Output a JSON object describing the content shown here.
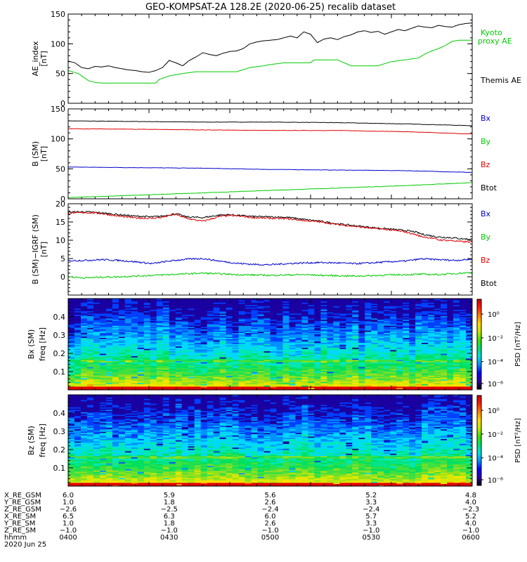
{
  "title": "GEO-KOMPSAT-2A 128.2E (2020-06-25) recalib dataset",
  "colors": {
    "black": "#000000",
    "red": "#e00000",
    "green": "#00cc00",
    "blue": "#0000cc"
  },
  "chart_data": [
    {
      "id": "ae",
      "type": "line",
      "ylabel": "AE_index",
      "yunit": "[nT]",
      "ylim": [
        0,
        150
      ],
      "yticks": [
        "0",
        "50",
        "100",
        "150"
      ],
      "x_range": [
        0,
        120
      ],
      "legend": [
        {
          "name": "Kyoto",
          "color": "#00cc00"
        },
        {
          "name": "proxy AE",
          "color": "#00cc00"
        },
        {
          "name": "Themis AE",
          "color": "#000000"
        }
      ],
      "series": [
        {
          "name": "Themis AE",
          "color": "#000000",
          "x": [
            0,
            2,
            4,
            6,
            8,
            10,
            12,
            14,
            16,
            18,
            20,
            22,
            24,
            26,
            28,
            30,
            32,
            34,
            36,
            38,
            40,
            42,
            44,
            46,
            48,
            50,
            52,
            54,
            56,
            58,
            60,
            62,
            64,
            66,
            68,
            70,
            72,
            74,
            76,
            78,
            80,
            82,
            84,
            86,
            88,
            90,
            92,
            94,
            96,
            98,
            100,
            102,
            104,
            106,
            108,
            110,
            112,
            114,
            116,
            118,
            120
          ],
          "y": [
            71,
            68,
            60,
            58,
            62,
            61,
            63,
            60,
            58,
            56,
            55,
            53,
            52,
            55,
            60,
            72,
            68,
            63,
            72,
            78,
            85,
            82,
            80,
            84,
            87,
            88,
            92,
            100,
            103,
            105,
            106,
            107,
            110,
            113,
            110,
            120,
            116,
            102,
            108,
            110,
            107,
            112,
            115,
            120,
            122,
            119,
            121,
            116,
            120,
            124,
            122,
            126,
            130,
            128,
            127,
            131,
            129,
            128,
            132,
            134,
            135
          ]
        },
        {
          "name": "Kyoto proxy AE",
          "color": "#00cc00",
          "x": [
            0,
            3,
            6,
            8,
            10,
            14,
            18,
            22,
            26,
            27,
            30,
            34,
            38,
            42,
            46,
            50,
            54,
            58,
            60,
            64,
            68,
            72,
            73,
            76,
            80,
            84,
            88,
            92,
            96,
            100,
            104,
            106,
            108,
            110,
            112,
            114,
            116,
            120
          ],
          "y": [
            55,
            50,
            38,
            35,
            34,
            34,
            34,
            34,
            34,
            40,
            46,
            50,
            53,
            53,
            53,
            53,
            60,
            63,
            65,
            68,
            68,
            68,
            73,
            73,
            73,
            63,
            63,
            63,
            70,
            73,
            76,
            83,
            88,
            92,
            97,
            104,
            106,
            106
          ]
        }
      ]
    },
    {
      "id": "bsm",
      "type": "line",
      "ylabel": "B (SM)",
      "yunit": "[nT]",
      "ylim": [
        0,
        150
      ],
      "yticks": [
        "0",
        "50",
        "100",
        "150"
      ],
      "x_range": [
        0,
        120
      ],
      "legend": [
        {
          "name": "Bx",
          "color": "#0000cc"
        },
        {
          "name": "By",
          "color": "#00cc00"
        },
        {
          "name": "Bz",
          "color": "#e00000"
        },
        {
          "name": "Btot",
          "color": "#000000"
        }
      ],
      "series": [
        {
          "name": "Btot",
          "color": "#000000",
          "x": [
            0,
            20,
            40,
            60,
            80,
            100,
            120
          ],
          "y": [
            130,
            129,
            128,
            128,
            127,
            125,
            122
          ]
        },
        {
          "name": "Bz",
          "color": "#e00000",
          "x": [
            0,
            20,
            40,
            60,
            80,
            100,
            120
          ],
          "y": [
            117,
            116,
            115,
            114,
            114,
            112,
            108
          ]
        },
        {
          "name": "Bx",
          "color": "#0000cc",
          "x": [
            0,
            20,
            40,
            60,
            80,
            100,
            120
          ],
          "y": [
            53,
            52,
            51,
            49,
            48,
            47,
            44
          ]
        },
        {
          "name": "By",
          "color": "#00cc00",
          "x": [
            0,
            20,
            40,
            60,
            80,
            100,
            120
          ],
          "y": [
            2,
            6,
            10,
            14,
            18,
            22,
            27
          ]
        }
      ]
    },
    {
      "id": "dbsm",
      "type": "line",
      "ylabel": "B (SM)−IGRF (SM)",
      "yunit": "[nT]",
      "ylim": [
        -5,
        20
      ],
      "yticks": [
        "0",
        "5",
        "10",
        "15",
        "20"
      ],
      "x_range": [
        0,
        120
      ],
      "legend": [
        {
          "name": "Bx",
          "color": "#0000cc"
        },
        {
          "name": "By",
          "color": "#00cc00"
        },
        {
          "name": "Bz",
          "color": "#e00000"
        },
        {
          "name": "Btot",
          "color": "#000000"
        }
      ],
      "series": [
        {
          "name": "Btot",
          "color": "#000000",
          "x": [
            0,
            5,
            10,
            15,
            20,
            25,
            28,
            32,
            35,
            40,
            45,
            48,
            52,
            55,
            60,
            65,
            70,
            75,
            80,
            85,
            90,
            95,
            100,
            103,
            105,
            108,
            110,
            114,
            117,
            120
          ],
          "y": [
            17.7,
            17.8,
            17.5,
            17.0,
            16.6,
            16.4,
            16.6,
            17.3,
            16.4,
            16.2,
            16.9,
            17.0,
            16.7,
            16.5,
            16.4,
            16.3,
            15.7,
            15.2,
            14.5,
            14.0,
            13.5,
            13.1,
            12.7,
            12.3,
            11.7,
            11.2,
            10.9,
            10.7,
            10.4,
            10.3
          ]
        },
        {
          "name": "Bz",
          "color": "#e00000",
          "x": [
            0,
            5,
            10,
            15,
            20,
            25,
            28,
            32,
            35,
            40,
            45,
            48,
            52,
            55,
            60,
            65,
            70,
            75,
            80,
            85,
            90,
            95,
            100,
            103,
            105,
            108,
            110,
            114,
            117,
            120
          ],
          "y": [
            17.4,
            17.6,
            17.3,
            16.6,
            16.1,
            16.0,
            16.3,
            17.1,
            16.0,
            15.2,
            16.5,
            16.8,
            16.5,
            16.2,
            16.0,
            15.9,
            15.4,
            15.0,
            14.3,
            13.8,
            13.3,
            12.9,
            12.3,
            11.6,
            11.0,
            10.6,
            10.1,
            9.9,
            9.6,
            9.5
          ]
        },
        {
          "name": "Bx",
          "color": "#0000cc",
          "x": [
            0,
            5,
            10,
            15,
            20,
            25,
            30,
            35,
            40,
            45,
            50,
            55,
            60,
            65,
            70,
            75,
            80,
            85,
            90,
            95,
            100,
            105,
            110,
            115,
            120
          ],
          "y": [
            4.4,
            4.5,
            4.7,
            4.5,
            4.1,
            3.6,
            4.3,
            4.8,
            5.0,
            4.3,
            3.7,
            3.4,
            3.3,
            3.6,
            3.8,
            3.9,
            3.8,
            3.6,
            3.8,
            4.1,
            4.3,
            4.9,
            4.7,
            4.5,
            4.8
          ]
        },
        {
          "name": "By",
          "color": "#00cc00",
          "x": [
            0,
            5,
            10,
            15,
            20,
            25,
            30,
            35,
            40,
            45,
            50,
            55,
            60,
            65,
            70,
            75,
            80,
            85,
            90,
            95,
            100,
            105,
            110,
            115,
            120
          ],
          "y": [
            0.0,
            -0.3,
            -0.1,
            0.0,
            0.2,
            0.4,
            0.6,
            0.8,
            1.0,
            0.8,
            0.6,
            0.5,
            0.4,
            0.5,
            0.6,
            0.4,
            0.3,
            0.2,
            0.3,
            0.5,
            0.6,
            0.7,
            0.6,
            0.9,
            1.2
          ]
        }
      ]
    },
    {
      "id": "bx_spec",
      "type": "heatmap",
      "ylabel": "Bx (SM)",
      "ylabel2": "freq  [Hz]",
      "ylim": [
        0,
        0.5
      ],
      "yticks": [
        "0.1",
        "0.2",
        "0.3",
        "0.4"
      ],
      "x_range": [
        0,
        120
      ],
      "colorbar": {
        "label": "PSD  [nT²/Hz]",
        "ticks": [
          "10⁰",
          "10⁻²",
          "10⁻⁴",
          "10⁻⁶"
        ]
      }
    },
    {
      "id": "bz_spec",
      "type": "heatmap",
      "ylabel": "Bz (SM)",
      "ylabel2": "freq  [Hz]",
      "ylim": [
        0,
        0.5
      ],
      "yticks": [
        "0.1",
        "0.2",
        "0.3",
        "0.4"
      ],
      "x_range": [
        0,
        120
      ],
      "colorbar": {
        "label": "PSD  [nT²/Hz]",
        "ticks": [
          "10⁰",
          "10⁻²",
          "10⁻⁴",
          "10⁻⁶"
        ]
      }
    }
  ],
  "ephemeris": {
    "labels": [
      "X_RE_GSM",
      "Y_RE_GSM",
      "Z_RE_GSM",
      "X_RE_SM",
      "Y_RE_SM",
      "Z_RE_SM",
      "hhmm"
    ],
    "columns": [
      [
        "6.0",
        "1.0",
        "−2.6",
        "6.5",
        "1.0",
        "−1.0",
        "0400"
      ],
      [
        "5.9",
        "1.8",
        "−2.5",
        "6.3",
        "1.8",
        "−1.0",
        "0430"
      ],
      [
        "5.6",
        "2.6",
        "−2.4",
        "6.0",
        "2.6",
        "−1.0",
        "0500"
      ],
      [
        "5.2",
        "3.3",
        "−2.4",
        "5.7",
        "3.3",
        "−1.0",
        "0530"
      ],
      [
        "4.8",
        "4.0",
        "−2.3",
        "5.2",
        "4.0",
        "−1.0",
        "0600"
      ]
    ],
    "date": "2020 Jun 25"
  }
}
